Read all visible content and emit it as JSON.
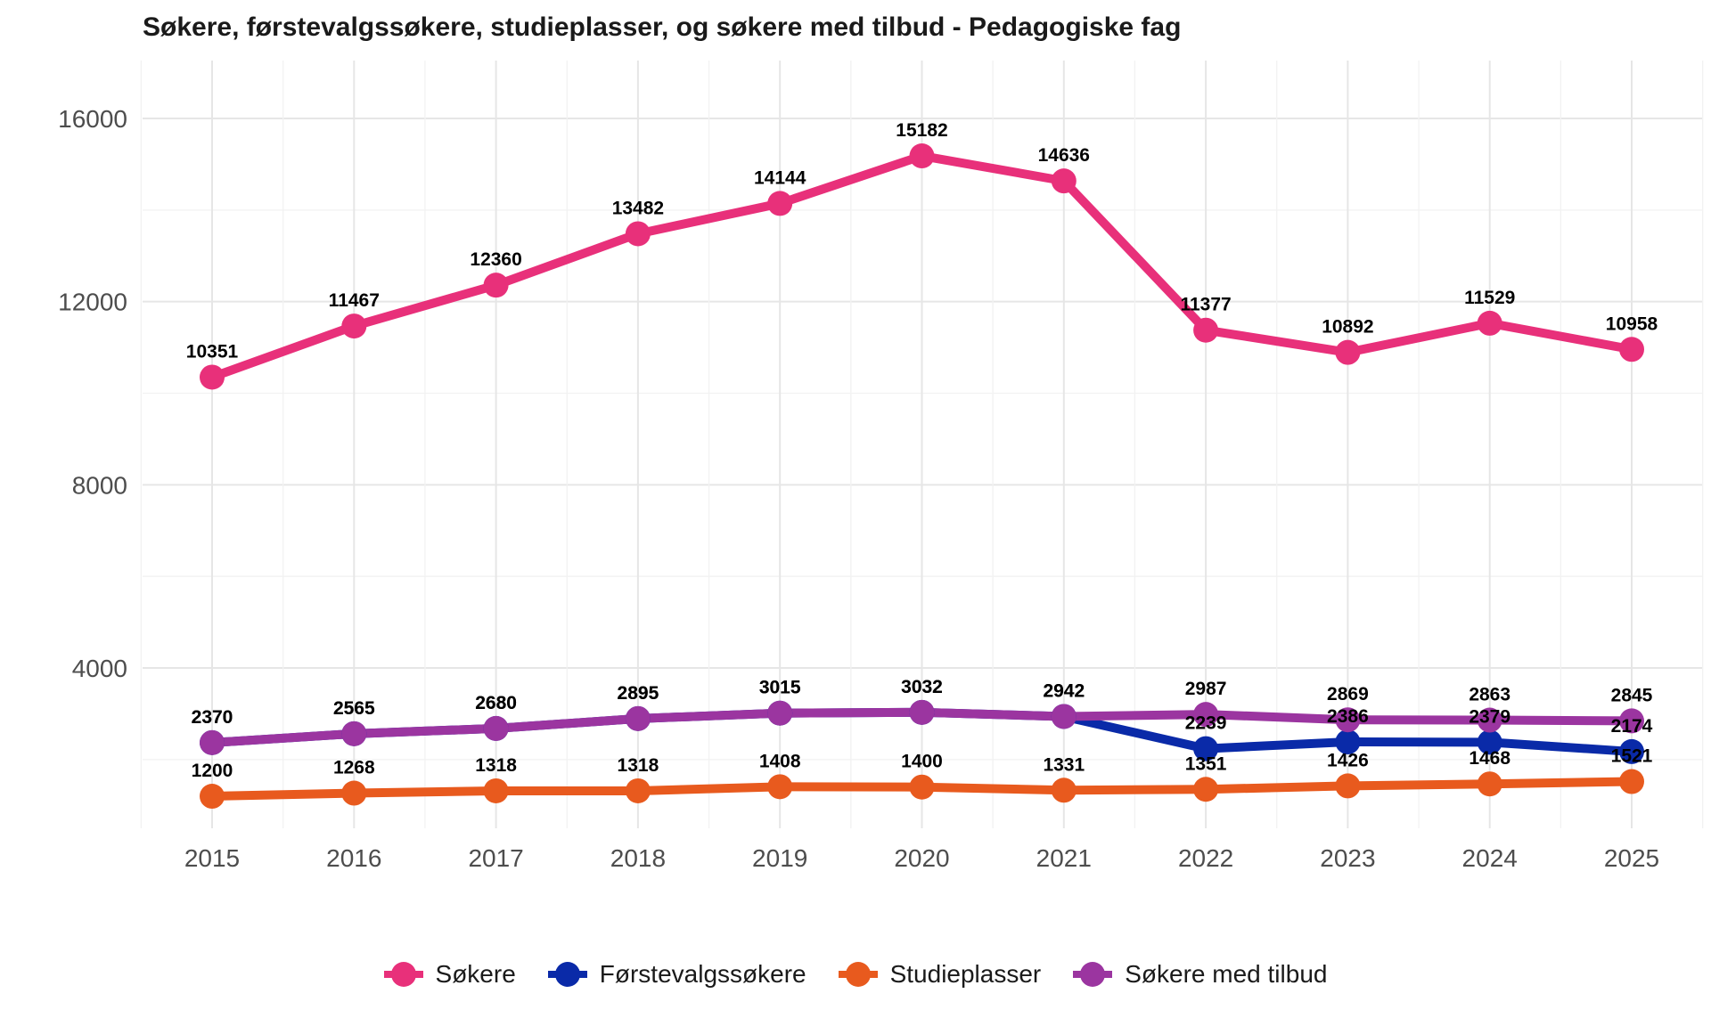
{
  "chart_data": {
    "type": "line",
    "title": "Søkere, førstevalgssøkere, studieplasser, og søkere med tilbud - Pedagogiske fag",
    "xlabel": "",
    "ylabel": "",
    "x": [
      "2015",
      "2016",
      "2017",
      "2018",
      "2019",
      "2020",
      "2021",
      "2022",
      "2023",
      "2024",
      "2025"
    ],
    "ylim": [
      0,
      17200
    ],
    "yticks": [
      "4000",
      "8000",
      "12000",
      "16000"
    ],
    "grid": true,
    "legend_position": "bottom",
    "series": [
      {
        "name": "Søkere",
        "color": "#e8307a",
        "values": [
          10351,
          11467,
          12360,
          13482,
          14144,
          15182,
          14636,
          11377,
          10892,
          11529,
          10958
        ]
      },
      {
        "name": "Førstevalgssøkere",
        "color": "#0a2aa8",
        "values": [
          2370,
          2565,
          2680,
          2895,
          3015,
          3032,
          2942,
          2239,
          2386,
          2379,
          2174
        ]
      },
      {
        "name": "Studieplasser",
        "color": "#e85a1e",
        "values": [
          1200,
          1268,
          1318,
          1318,
          1408,
          1400,
          1331,
          1351,
          1426,
          1468,
          1521
        ]
      },
      {
        "name": "Søkere med tilbud",
        "color": "#9b35a0",
        "values": [
          2370,
          2565,
          2680,
          2895,
          3015,
          3032,
          2942,
          2987,
          2869,
          2863,
          2845
        ]
      }
    ]
  }
}
